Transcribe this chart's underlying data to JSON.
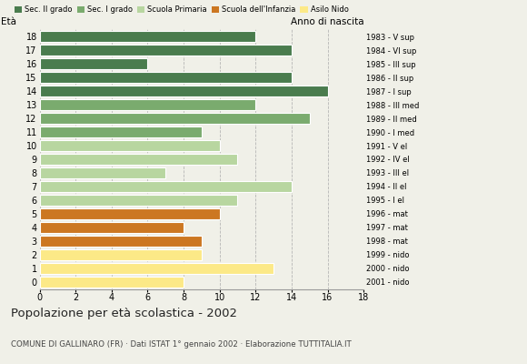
{
  "ages": [
    18,
    17,
    16,
    15,
    14,
    13,
    12,
    11,
    10,
    9,
    8,
    7,
    6,
    5,
    4,
    3,
    2,
    1,
    0
  ],
  "values": [
    12,
    14,
    6,
    14,
    16,
    12,
    15,
    9,
    10,
    11,
    7,
    14,
    11,
    10,
    8,
    9,
    9,
    13,
    8
  ],
  "anno_nascita": [
    "1983 - V sup",
    "1984 - VI sup",
    "1985 - III sup",
    "1986 - II sup",
    "1987 - I sup",
    "1988 - III med",
    "1989 - II med",
    "1990 - I med",
    "1991 - V el",
    "1992 - IV el",
    "1993 - III el",
    "1994 - II el",
    "1995 - I el",
    "1996 - mat",
    "1997 - mat",
    "1998 - mat",
    "1999 - nido",
    "2000 - nido",
    "2001 - nido"
  ],
  "colors": [
    "#4a7c4e",
    "#4a7c4e",
    "#4a7c4e",
    "#4a7c4e",
    "#4a7c4e",
    "#7aab6e",
    "#7aab6e",
    "#7aab6e",
    "#b8d6a0",
    "#b8d6a0",
    "#b8d6a0",
    "#b8d6a0",
    "#b8d6a0",
    "#cc7722",
    "#cc7722",
    "#cc7722",
    "#fce987",
    "#fce987",
    "#fce987"
  ],
  "legend_labels": [
    "Sec. II grado",
    "Sec. I grado",
    "Scuola Primaria",
    "Scuola dell'Infanzia",
    "Asilo Nido"
  ],
  "legend_colors": [
    "#4a7c4e",
    "#7aab6e",
    "#b8d6a0",
    "#cc7722",
    "#fce987"
  ],
  "title": "Popolazione per età scolastica - 2002",
  "subtitle": "COMUNE DI GALLINARO (FR) · Dati ISTAT 1° gennaio 2002 · Elaborazione TUTTITALIA.IT",
  "ylabel_age": "Età",
  "ylabel_anno": "Anno di nascita",
  "xlim": [
    0,
    18
  ],
  "xticks": [
    0,
    2,
    4,
    6,
    8,
    10,
    12,
    14,
    16,
    18
  ],
  "background_color": "#f0f0e8",
  "bar_edge_color": "white"
}
